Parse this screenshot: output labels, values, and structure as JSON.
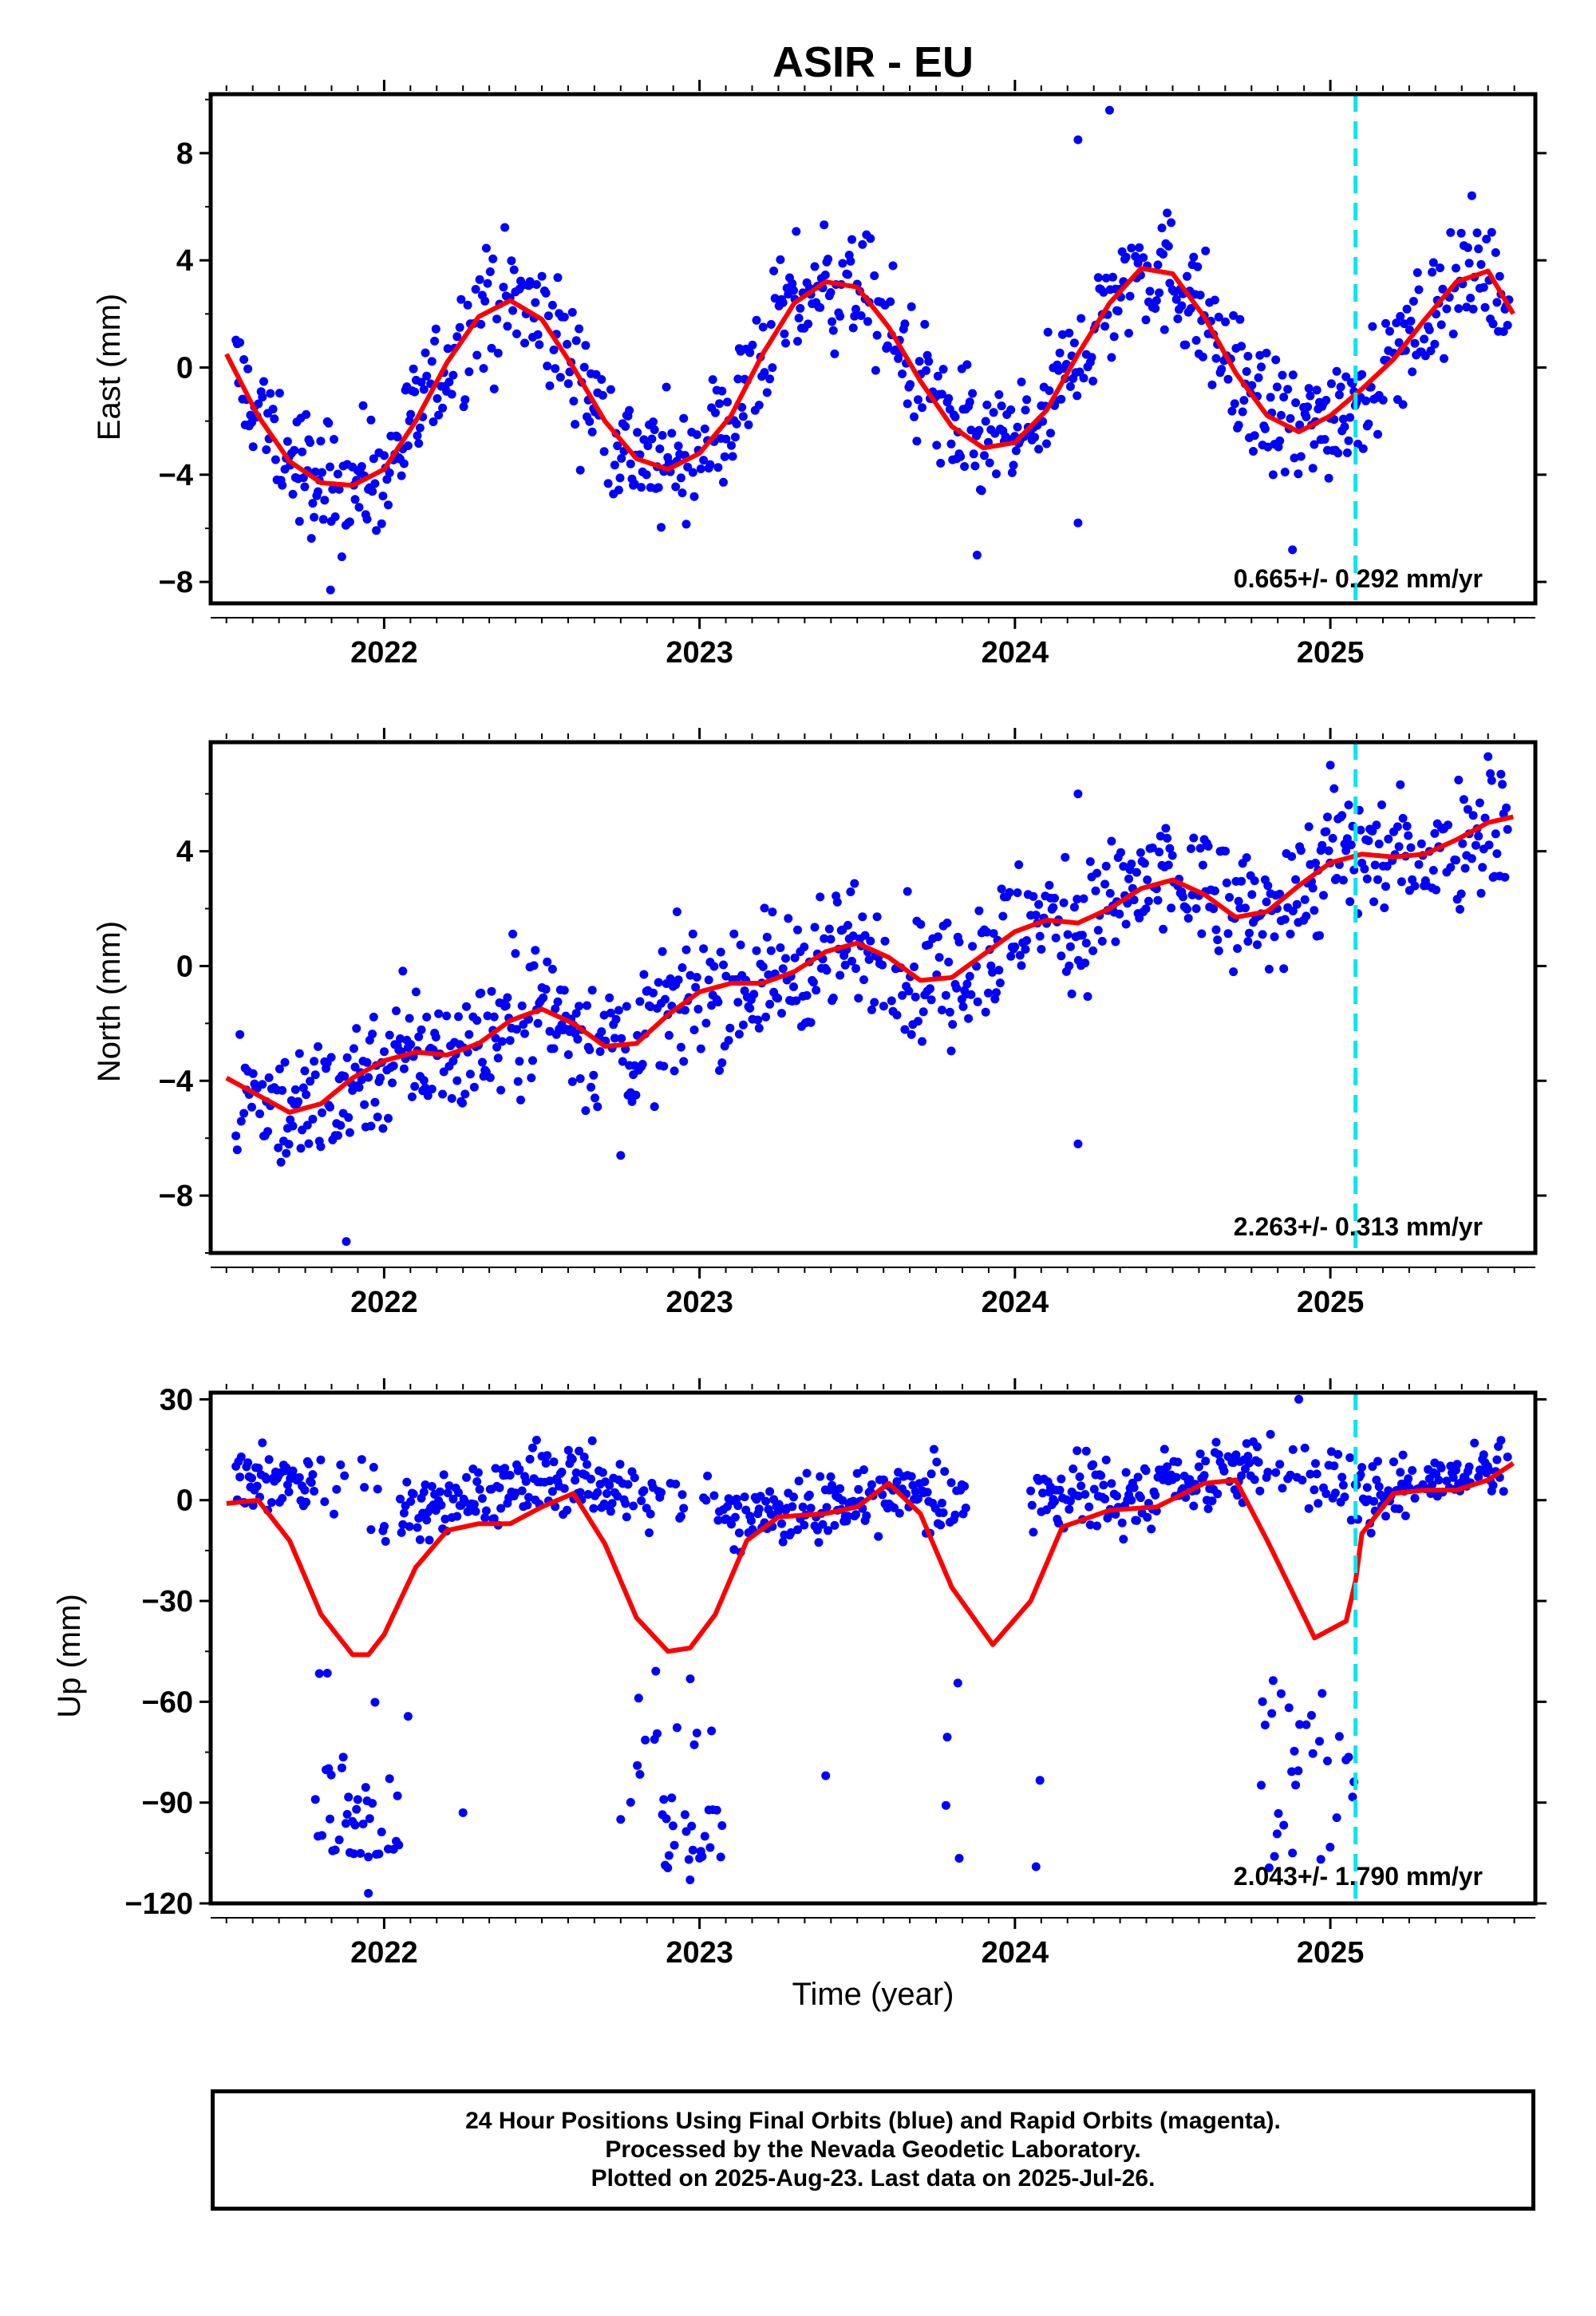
{
  "title": "ASIR - EU",
  "xlabel": "Time (year)",
  "legend": {
    "lines": [
      "24 Hour Positions Using Final Orbits (blue) and Rapid Orbits (magenta).",
      "Processed by the Nevada Geodetic Laboratory.",
      "Plotted on 2025-Aug-23. Last data on 2025-Jul-26."
    ]
  },
  "colors": {
    "points": "#0000ff",
    "fit": "#ff0000",
    "event": "#00e5ee",
    "frame": "#000000"
  },
  "chart_data": [
    {
      "type": "scatter",
      "panel": "east",
      "ylabel": "East (mm)",
      "xlim": [
        2021.45,
        2025.65
      ],
      "ylim": [
        -8.8,
        10.2
      ],
      "yticks": [
        -8,
        -4,
        0,
        4,
        8
      ],
      "yticklabels": [
        "−8",
        "−4",
        "0",
        "4",
        "8"
      ],
      "xticks": [
        2022,
        2023,
        2024,
        2025
      ],
      "xticklabels": [
        "2022",
        "2023",
        "2024",
        "2025"
      ],
      "rate_label": "0.665+/- 0.292 mm/yr",
      "event_x": 2025.08,
      "fit": {
        "name": "",
        "x": [
          2021.5,
          2021.6,
          2021.7,
          2021.8,
          2021.9,
          2022.0,
          2022.1,
          2022.2,
          2022.3,
          2022.4,
          2022.5,
          2022.6,
          2022.7,
          2022.8,
          2022.9,
          2023.0,
          2023.1,
          2023.2,
          2023.3,
          2023.4,
          2023.5,
          2023.6,
          2023.7,
          2023.8,
          2023.9,
          2024.0,
          2024.1,
          2024.2,
          2024.3,
          2024.4,
          2024.5,
          2024.6,
          2024.7,
          2024.8,
          2024.9,
          2025.0,
          2025.1,
          2025.2,
          2025.3,
          2025.4,
          2025.5,
          2025.58
        ],
        "y": [
          0.5,
          -1.8,
          -3.5,
          -4.3,
          -4.4,
          -3.8,
          -2.0,
          0.2,
          1.9,
          2.5,
          1.8,
          0.0,
          -2.0,
          -3.4,
          -3.8,
          -3.2,
          -1.8,
          0.5,
          2.4,
          3.2,
          3.0,
          1.5,
          -0.5,
          -2.2,
          -3.0,
          -2.8,
          -1.6,
          0.5,
          2.4,
          3.7,
          3.5,
          1.9,
          -0.2,
          -1.8,
          -2.4,
          -1.8,
          -0.8,
          0.3,
          1.8,
          3.2,
          3.6,
          2.0
        ]
      },
      "outliers": [
        {
          "x": 2024.2,
          "y": 8.5
        },
        {
          "x": 2024.3,
          "y": 9.6
        },
        {
          "x": 2024.2,
          "y": -5.8
        },
        {
          "x": 2023.88,
          "y": -7.0
        },
        {
          "x": 2024.88,
          "y": -6.8
        },
        {
          "x": 2021.83,
          "y": -8.3
        }
      ]
    },
    {
      "type": "scatter",
      "panel": "north",
      "ylabel": "North (mm)",
      "xlim": [
        2021.45,
        2025.65
      ],
      "ylim": [
        -10.0,
        7.8
      ],
      "yticks": [
        -8,
        -4,
        0,
        4
      ],
      "yticklabels": [
        "−8",
        "−4",
        "0",
        "4"
      ],
      "xticks": [
        2022,
        2023,
        2024,
        2025
      ],
      "xticklabels": [
        "2022",
        "2023",
        "2024",
        "2025"
      ],
      "rate_label": "2.263+/- 0.313 mm/yr",
      "event_x": 2025.08,
      "fit": {
        "name": "",
        "x": [
          2021.5,
          2021.6,
          2021.7,
          2021.8,
          2021.9,
          2022.0,
          2022.1,
          2022.2,
          2022.3,
          2022.4,
          2022.5,
          2022.6,
          2022.7,
          2022.8,
          2022.9,
          2023.0,
          2023.1,
          2023.2,
          2023.3,
          2023.4,
          2023.5,
          2023.6,
          2023.7,
          2023.8,
          2023.9,
          2024.0,
          2024.1,
          2024.2,
          2024.3,
          2024.4,
          2024.5,
          2024.6,
          2024.7,
          2024.8,
          2024.9,
          2025.0,
          2025.1,
          2025.2,
          2025.3,
          2025.4,
          2025.5,
          2025.58
        ],
        "y": [
          -3.9,
          -4.5,
          -5.1,
          -4.8,
          -3.9,
          -3.3,
          -3.0,
          -3.1,
          -2.7,
          -1.9,
          -1.5,
          -2.0,
          -2.8,
          -2.7,
          -1.7,
          -0.9,
          -0.6,
          -0.6,
          -0.2,
          0.5,
          0.8,
          0.3,
          -0.5,
          -0.4,
          0.4,
          1.2,
          1.6,
          1.5,
          2.0,
          2.7,
          3.0,
          2.5,
          1.7,
          1.9,
          2.8,
          3.6,
          3.9,
          3.8,
          3.9,
          4.4,
          5.0,
          5.2
        ]
      },
      "outliers": [
        {
          "x": 2021.88,
          "y": -9.6
        },
        {
          "x": 2022.75,
          "y": -6.6
        },
        {
          "x": 2024.2,
          "y": -6.2
        },
        {
          "x": 2024.2,
          "y": 6.0
        },
        {
          "x": 2025.0,
          "y": 7.0
        },
        {
          "x": 2025.5,
          "y": 7.3
        }
      ]
    },
    {
      "type": "scatter",
      "panel": "up",
      "ylabel": "Up (mm)",
      "xlim": [
        2021.45,
        2025.65
      ],
      "ylim": [
        -120,
        32
      ],
      "yticks": [
        -120,
        -90,
        -60,
        -30,
        0,
        30
      ],
      "yticklabels": [
        "−120",
        "−90",
        "−60",
        "−30",
        "0",
        "30"
      ],
      "xticks": [
        2022,
        2023,
        2024,
        2025
      ],
      "xticklabels": [
        "2022",
        "2023",
        "2024",
        "2025"
      ],
      "rate_label": "2.043+/- 1.790 mm/yr",
      "event_x": 2025.08,
      "fit": {
        "name": "",
        "x": [
          2021.5,
          2021.6,
          2021.7,
          2021.8,
          2021.9,
          2021.95,
          2022.0,
          2022.1,
          2022.2,
          2022.3,
          2022.4,
          2022.5,
          2022.6,
          2022.7,
          2022.8,
          2022.9,
          2022.97,
          2023.05,
          2023.15,
          2023.25,
          2023.4,
          2023.5,
          2023.6,
          2023.7,
          2023.8,
          2023.93,
          2024.05,
          2024.15,
          2024.3,
          2024.45,
          2024.6,
          2024.7,
          2024.8,
          2024.95,
          2025.05,
          2025.08,
          2025.1,
          2025.2,
          2025.3,
          2025.4,
          2025.5,
          2025.58
        ],
        "y": [
          -1,
          0,
          -12,
          -34,
          -46,
          -46,
          -40,
          -20,
          -9,
          -7,
          -7,
          -2,
          2,
          -13,
          -35,
          -45,
          -44,
          -34,
          -12,
          -5,
          -4,
          -2,
          5,
          -4,
          -26,
          -43,
          -30,
          -8,
          -3,
          -2,
          5,
          6,
          -12,
          -41,
          -36,
          -24,
          -10,
          2,
          3,
          3,
          6,
          11
        ]
      },
      "outliers": [
        {
          "x": 2021.95,
          "y": -117
        },
        {
          "x": 2022.97,
          "y": -113
        },
        {
          "x": 2024.88,
          "y": -105
        },
        {
          "x": 2024.9,
          "y": 30
        },
        {
          "x": 2023.4,
          "y": -82
        },
        {
          "x": 2022.25,
          "y": -93
        },
        {
          "x": 2022.75,
          "y": -95
        }
      ]
    }
  ]
}
